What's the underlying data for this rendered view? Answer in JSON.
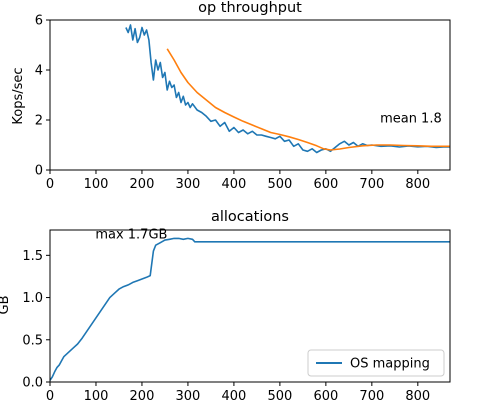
{
  "chart_data": [
    {
      "type": "line",
      "title": "op throughput",
      "xlabel": "",
      "ylabel": "Kops/sec",
      "xlim": [
        0,
        870
      ],
      "ylim": [
        0,
        6
      ],
      "xticks": [
        "0",
        "100",
        "200",
        "300",
        "400",
        "500",
        "600",
        "700",
        "800"
      ],
      "yticks": [
        "0",
        "2",
        "4",
        "6"
      ],
      "grid": false,
      "annotations": [
        {
          "text": "mean 1.8",
          "x": 785,
          "y": 1.9
        }
      ],
      "series": [
        {
          "color": "#1f77b4",
          "x": [
            165,
            170,
            175,
            180,
            185,
            190,
            195,
            200,
            205,
            210,
            215,
            220,
            225,
            230,
            235,
            240,
            245,
            250,
            255,
            260,
            265,
            270,
            275,
            280,
            285,
            290,
            295,
            300,
            305,
            310,
            320,
            330,
            340,
            350,
            360,
            370,
            380,
            390,
            400,
            410,
            420,
            430,
            440,
            450,
            460,
            470,
            480,
            490,
            500,
            510,
            520,
            530,
            540,
            550,
            560,
            570,
            580,
            590,
            600,
            610,
            620,
            630,
            640,
            650,
            660,
            670,
            680,
            690,
            700,
            720,
            740,
            760,
            780,
            800,
            820,
            840,
            860,
            870
          ],
          "y": [
            5.7,
            5.5,
            5.8,
            5.2,
            5.65,
            5.1,
            5.3,
            5.7,
            5.4,
            5.6,
            5.2,
            4.3,
            3.6,
            4.4,
            4.0,
            4.3,
            3.7,
            3.9,
            3.2,
            3.55,
            3.3,
            3.4,
            2.9,
            3.1,
            2.7,
            2.95,
            2.6,
            2.7,
            2.5,
            2.65,
            2.4,
            2.3,
            2.15,
            1.95,
            2.0,
            1.75,
            1.9,
            1.55,
            1.7,
            1.5,
            1.6,
            1.45,
            1.55,
            1.4,
            1.4,
            1.35,
            1.3,
            1.25,
            1.35,
            1.15,
            1.2,
            0.95,
            1.05,
            0.8,
            0.75,
            0.85,
            0.7,
            0.8,
            0.85,
            0.75,
            0.9,
            1.05,
            1.15,
            1.0,
            1.1,
            0.95,
            1.05,
            0.98,
            1.0,
            0.95,
            0.97,
            0.92,
            0.96,
            0.93,
            0.95,
            0.9,
            0.93,
            0.92
          ]
        },
        {
          "color": "#ff7f0e",
          "x": [
            255,
            270,
            285,
            300,
            320,
            340,
            360,
            380,
            400,
            420,
            440,
            460,
            480,
            500,
            520,
            540,
            560,
            580,
            595,
            610,
            630,
            650,
            680,
            710,
            740,
            770,
            800,
            830,
            870
          ],
          "y": [
            4.85,
            4.4,
            3.9,
            3.5,
            3.1,
            2.8,
            2.5,
            2.3,
            2.12,
            1.95,
            1.8,
            1.65,
            1.5,
            1.42,
            1.33,
            1.22,
            1.1,
            0.97,
            0.85,
            0.8,
            0.84,
            0.9,
            0.97,
            1.0,
            1.0,
            0.98,
            0.97,
            0.95,
            0.95
          ]
        }
      ]
    },
    {
      "type": "line",
      "title": "allocations",
      "xlabel": "",
      "ylabel": "GB",
      "xlim": [
        0,
        870
      ],
      "ylim": [
        0,
        1.8
      ],
      "xticks": [
        "0",
        "100",
        "200",
        "300",
        "400",
        "500",
        "600",
        "700",
        "800"
      ],
      "yticks": [
        "0.0",
        "0.5",
        "1.0",
        "1.5"
      ],
      "grid": false,
      "legend": "bottom-right",
      "annotations": [
        {
          "text": "max 1.7GB",
          "x": 177,
          "y": 1.7
        }
      ],
      "series": [
        {
          "name": "OS mapping",
          "color": "#1f77b4",
          "x": [
            0,
            5,
            10,
            15,
            20,
            25,
            30,
            40,
            50,
            60,
            70,
            80,
            90,
            100,
            110,
            120,
            130,
            140,
            150,
            160,
            170,
            180,
            190,
            200,
            210,
            218,
            225,
            230,
            240,
            250,
            260,
            270,
            280,
            290,
            300,
            310,
            315,
            330,
            400,
            500,
            600,
            700,
            800,
            870
          ],
          "y": [
            0.02,
            0.06,
            0.12,
            0.17,
            0.2,
            0.25,
            0.3,
            0.35,
            0.4,
            0.45,
            0.52,
            0.6,
            0.68,
            0.76,
            0.84,
            0.92,
            1.0,
            1.05,
            1.1,
            1.13,
            1.15,
            1.18,
            1.2,
            1.22,
            1.24,
            1.26,
            1.55,
            1.62,
            1.65,
            1.68,
            1.69,
            1.7,
            1.7,
            1.69,
            1.7,
            1.69,
            1.66,
            1.66,
            1.66,
            1.66,
            1.66,
            1.66,
            1.66,
            1.66
          ]
        }
      ]
    }
  ]
}
